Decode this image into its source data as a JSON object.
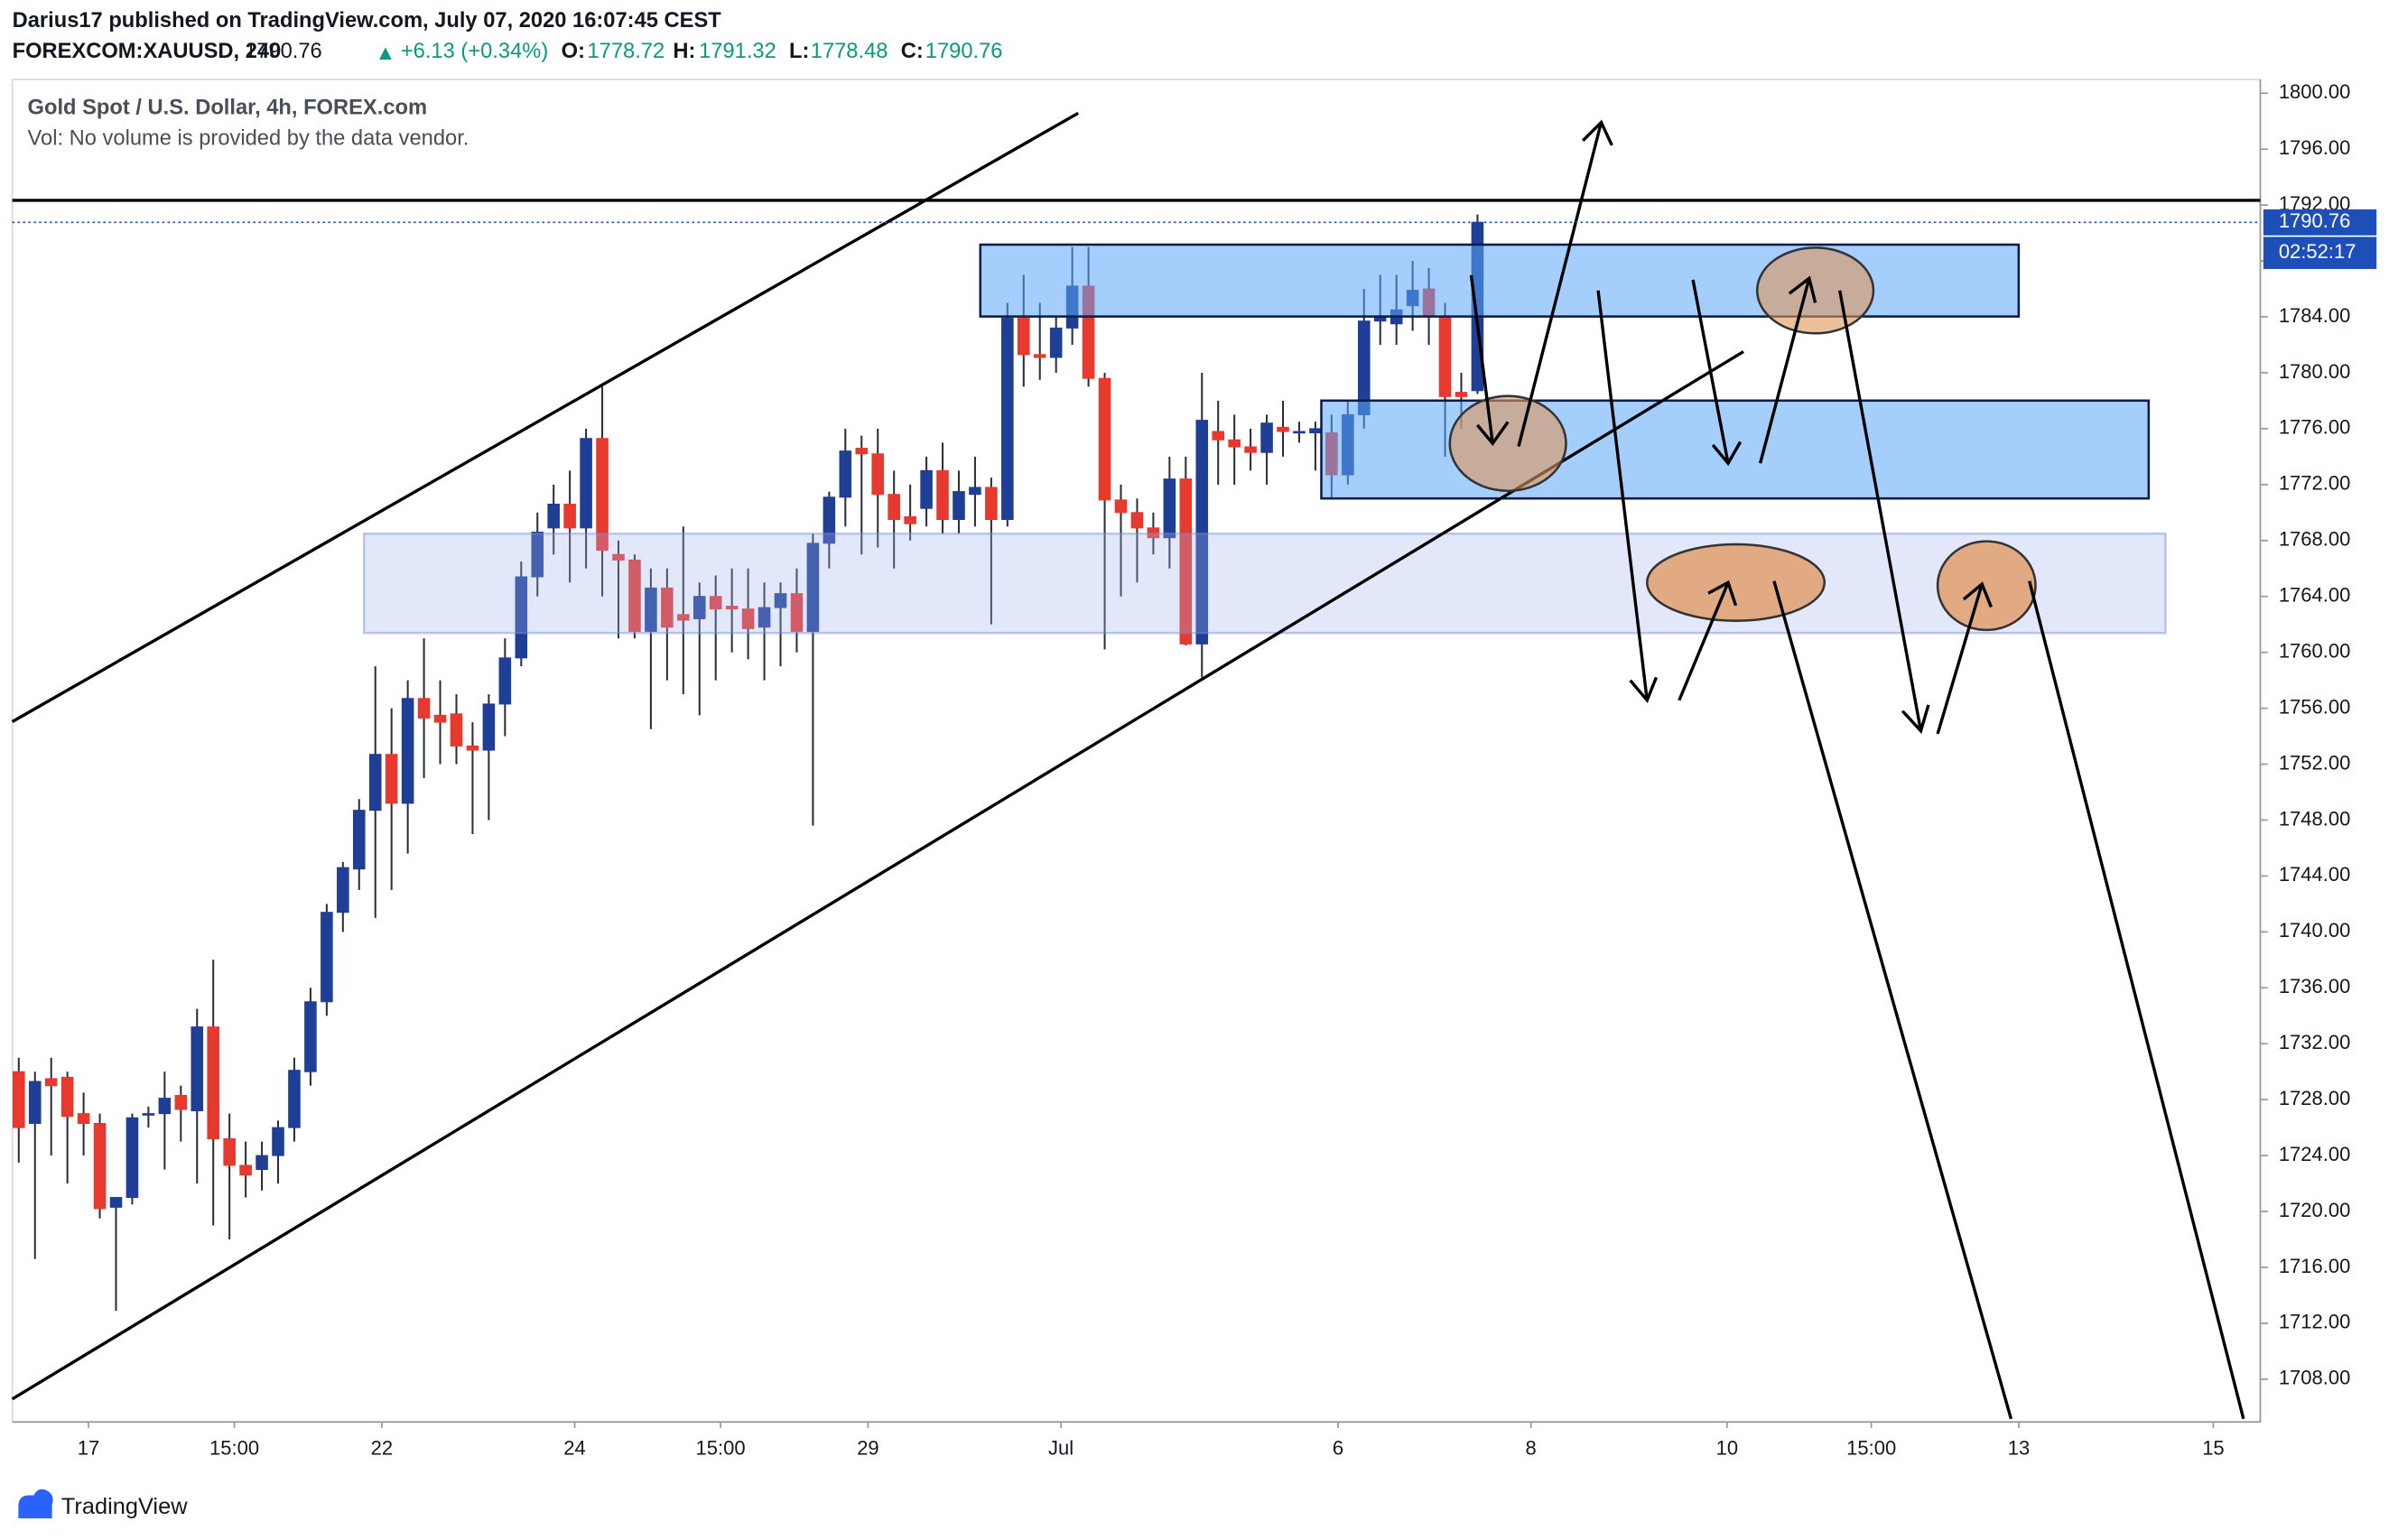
{
  "header": {
    "publisher": "Darius17 published on TradingView.com, July 07, 2020 16:07:45 CEST",
    "symbol": "FOREXCOM:XAUUSD, 240",
    "change": "+6.13 (+0.34%)",
    "o_label": "O:",
    "h_label": "H:",
    "l_label": "L:",
    "c_label": "C:"
  },
  "chart_data": {
    "type": "candlestick",
    "title": "Gold Spot / U.S. Dollar, 4h, FOREX.com",
    "subtitle": "Vol: No volume is provided by the data vendor.",
    "open": [
      1730,
      1726.3,
      1729.5,
      1729.6,
      1727,
      1726.3,
      1720.3,
      1721,
      1726.9,
      1727,
      1728.3,
      1727.2,
      1733.2,
      1725.2,
      1723.3,
      1723,
      1724,
      1726,
      1730,
      1735,
      1741.4,
      1744.5,
      1748.7,
      1752.7,
      1749.2,
      1756.7,
      1755.5,
      1755.6,
      1753.3,
      1753,
      1756.3,
      1759.6,
      1765.4,
      1768.9,
      1770.6,
      1768.9,
      1775.3,
      1767,
      1766.6,
      1761.5,
      1764.6,
      1762.7,
      1762.4,
      1764,
      1763.3,
      1763.1,
      1761.8,
      1763.2,
      1764.2,
      1761.5,
      1767.8,
      1771.1,
      1774.6,
      1774.2,
      1771.3,
      1769.7,
      1770.3,
      1773,
      1769.5,
      1771.3,
      1771.8,
      1769.5,
      1783.9,
      1781.3,
      1781.1,
      1783.2,
      1786.2,
      1779.6,
      1770.9,
      1770,
      1768.9,
      1768.2,
      1772.4,
      1760.6,
      1775.8,
      1775.2,
      1774.7,
      1774.3,
      1776.1,
      1775.8,
      1775.7,
      1775.7,
      1772.7,
      1777,
      1783.7,
      1783.5,
      1784.8,
      1786,
      1784,
      1778.6,
      1778.72
    ],
    "high": [
      1731,
      1730,
      1731,
      1730,
      1728.5,
      1727,
      1721,
      1727,
      1727.5,
      1730,
      1729,
      1734.5,
      1738,
      1727,
      1725,
      1725,
      1726.5,
      1731,
      1736,
      1742,
      1745,
      1749.5,
      1759,
      1756,
      1758,
      1761,
      1758,
      1757,
      1755,
      1757,
      1761,
      1766.5,
      1770,
      1772,
      1773,
      1776,
      1779,
      1768,
      1767,
      1766,
      1766,
      1769,
      1765,
      1765.5,
      1766,
      1766,
      1765,
      1765,
      1766,
      1768.5,
      1771.5,
      1776,
      1775.5,
      1776,
      1773,
      1772,
      1774,
      1775,
      1773,
      1774,
      1772.5,
      1785,
      1787,
      1785,
      1784,
      1789,
      1789,
      1780,
      1772,
      1771,
      1770,
      1774,
      1774,
      1780,
      1778,
      1777,
      1776,
      1777,
      1778,
      1776.5,
      1776.5,
      1777,
      1778,
      1786,
      1787,
      1787,
      1788,
      1787.5,
      1785,
      1780,
      1791.32
    ],
    "low": [
      1723.5,
      1716.6,
      1724,
      1722,
      1724,
      1719.5,
      1712.9,
      1720.5,
      1726,
      1723,
      1725,
      1722,
      1719,
      1718,
      1721,
      1721.5,
      1722,
      1725,
      1729,
      1734,
      1740,
      1743,
      1741,
      1743,
      1745.6,
      1751,
      1752,
      1752,
      1747,
      1748,
      1754,
      1759,
      1764,
      1767,
      1765,
      1766,
      1764,
      1761,
      1761,
      1754.5,
      1758,
      1757,
      1755.5,
      1758,
      1760,
      1759.5,
      1758,
      1759,
      1760,
      1747.6,
      1766,
      1769,
      1767,
      1767.5,
      1766,
      1768,
      1769,
      1768.5,
      1768.5,
      1769,
      1762,
      1769,
      1779,
      1779.5,
      1780,
      1782,
      1779,
      1760.2,
      1764,
      1765,
      1767,
      1766,
      1760.5,
      1758.2,
      1772,
      1772,
      1773,
      1772,
      1774,
      1775,
      1773,
      1771,
      1772,
      1776,
      1782,
      1782,
      1783,
      1782,
      1774,
      1776,
      1778.48
    ],
    "close": [
      1726,
      1729.3,
      1729,
      1726.8,
      1726.3,
      1720.2,
      1721,
      1726.7,
      1727,
      1728.1,
      1727.3,
      1733.2,
      1725.2,
      1723.3,
      1722.6,
      1724,
      1726,
      1730.1,
      1735,
      1741.4,
      1744.6,
      1748.7,
      1752.7,
      1749.2,
      1756.7,
      1755.3,
      1755,
      1753.3,
      1753,
      1756.3,
      1759.6,
      1765.4,
      1768.6,
      1770.6,
      1768.9,
      1775.3,
      1767.3,
      1766.6,
      1761.5,
      1764.6,
      1761.8,
      1762.3,
      1764,
      1763.1,
      1763.1,
      1761.7,
      1763.2,
      1764.2,
      1761.5,
      1767.8,
      1771.1,
      1774.4,
      1774.2,
      1771.3,
      1769.5,
      1769.2,
      1773,
      1769.5,
      1771.5,
      1771.8,
      1769.5,
      1783.9,
      1781.3,
      1781.1,
      1783.2,
      1786.2,
      1779.6,
      1770.9,
      1770,
      1768.9,
      1768.2,
      1772.4,
      1760.6,
      1776.6,
      1775.2,
      1774.7,
      1774.3,
      1776.4,
      1775.8,
      1775.8,
      1776,
      1772.7,
      1777,
      1783.7,
      1784,
      1784.5,
      1785.9,
      1784,
      1778.3,
      1778.3,
      1790.76
    ],
    "up_color": "#1f3f96",
    "down_color": "#e8392e",
    "last_price_color": "#1e4fb8",
    "countdown": "02:52:17",
    "xlim": [
      -0.4,
      138.3
    ],
    "xticks": [
      {
        "value": 4.3,
        "label": "17"
      },
      {
        "value": 13.3,
        "label": "15:00"
      },
      {
        "value": 22.4,
        "label": "22"
      },
      {
        "value": 34.3,
        "label": "24"
      },
      {
        "value": 43.3,
        "label": "15:00"
      },
      {
        "value": 52.4,
        "label": "29"
      },
      {
        "value": 64.3,
        "label": "Jul"
      },
      {
        "value": 81.4,
        "label": "6"
      },
      {
        "value": 93.3,
        "label": "8"
      },
      {
        "value": 105.4,
        "label": "10"
      },
      {
        "value": 114.3,
        "label": "15:00"
      },
      {
        "value": 123.4,
        "label": "13"
      },
      {
        "value": 135.4,
        "label": "15"
      }
    ],
    "ylim": [
      1704.94,
      1800.98
    ],
    "yticks": [
      {
        "value": 1708,
        "label": "1708.00"
      },
      {
        "value": 1712,
        "label": "1712.00"
      },
      {
        "value": 1716,
        "label": "1716.00"
      },
      {
        "value": 1720,
        "label": "1720.00"
      },
      {
        "value": 1724,
        "label": "1724.00"
      },
      {
        "value": 1728,
        "label": "1728.00"
      },
      {
        "value": 1732,
        "label": "1732.00"
      },
      {
        "value": 1736,
        "label": "1736.00"
      },
      {
        "value": 1740,
        "label": "1740.00"
      },
      {
        "value": 1744,
        "label": "1744.00"
      },
      {
        "value": 1748,
        "label": "1748.00"
      },
      {
        "value": 1752,
        "label": "1752.00"
      },
      {
        "value": 1756,
        "label": "1756.00"
      },
      {
        "value": 1760,
        "label": "1760.00"
      },
      {
        "value": 1764,
        "label": "1764.00"
      },
      {
        "value": 1768,
        "label": "1768.00"
      },
      {
        "value": 1772,
        "label": "1772.00"
      },
      {
        "value": 1776,
        "label": "1776.00"
      },
      {
        "value": 1780,
        "label": "1780.00"
      },
      {
        "value": 1784,
        "label": "1784.00"
      },
      {
        "value": 1788,
        "label": "1788.00"
      },
      {
        "value": 1792,
        "label": "1792.00"
      },
      {
        "value": 1796,
        "label": "1796.00"
      },
      {
        "value": 1800,
        "label": "1800.00"
      }
    ],
    "grid": false
  },
  "footer": {
    "brand": "TradingView"
  }
}
